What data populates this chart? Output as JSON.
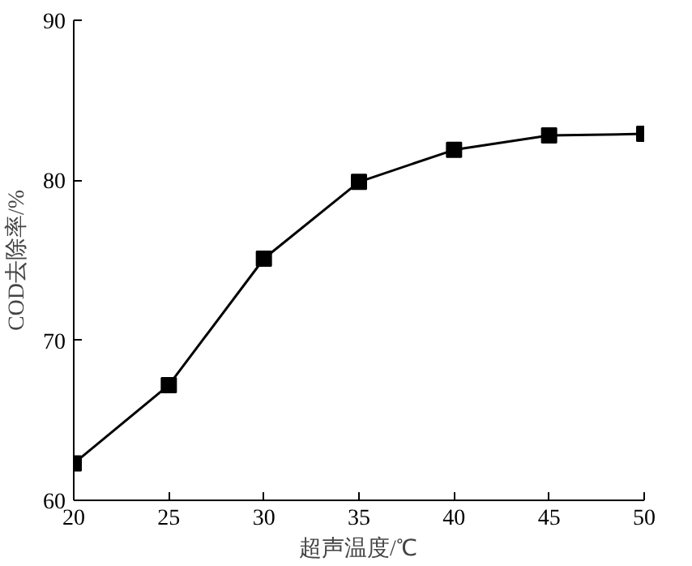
{
  "chart_data": {
    "type": "line",
    "xlabel": "超声温度/℃",
    "ylabel": "COD去除率/%",
    "x": [
      20,
      25,
      30,
      35,
      40,
      45,
      50
    ],
    "series": [
      {
        "color": "#000000",
        "values": [
          62.3,
          67.2,
          75.1,
          79.9,
          81.9,
          82.8,
          82.9
        ]
      }
    ],
    "xlim": [
      20,
      50
    ],
    "xticks": [
      20,
      25,
      30,
      35,
      40,
      45,
      50
    ],
    "ylim": [
      60,
      90
    ],
    "yticks": [
      60,
      70,
      80,
      90
    ],
    "grid": false,
    "marker": "square",
    "line_style": "solid"
  }
}
